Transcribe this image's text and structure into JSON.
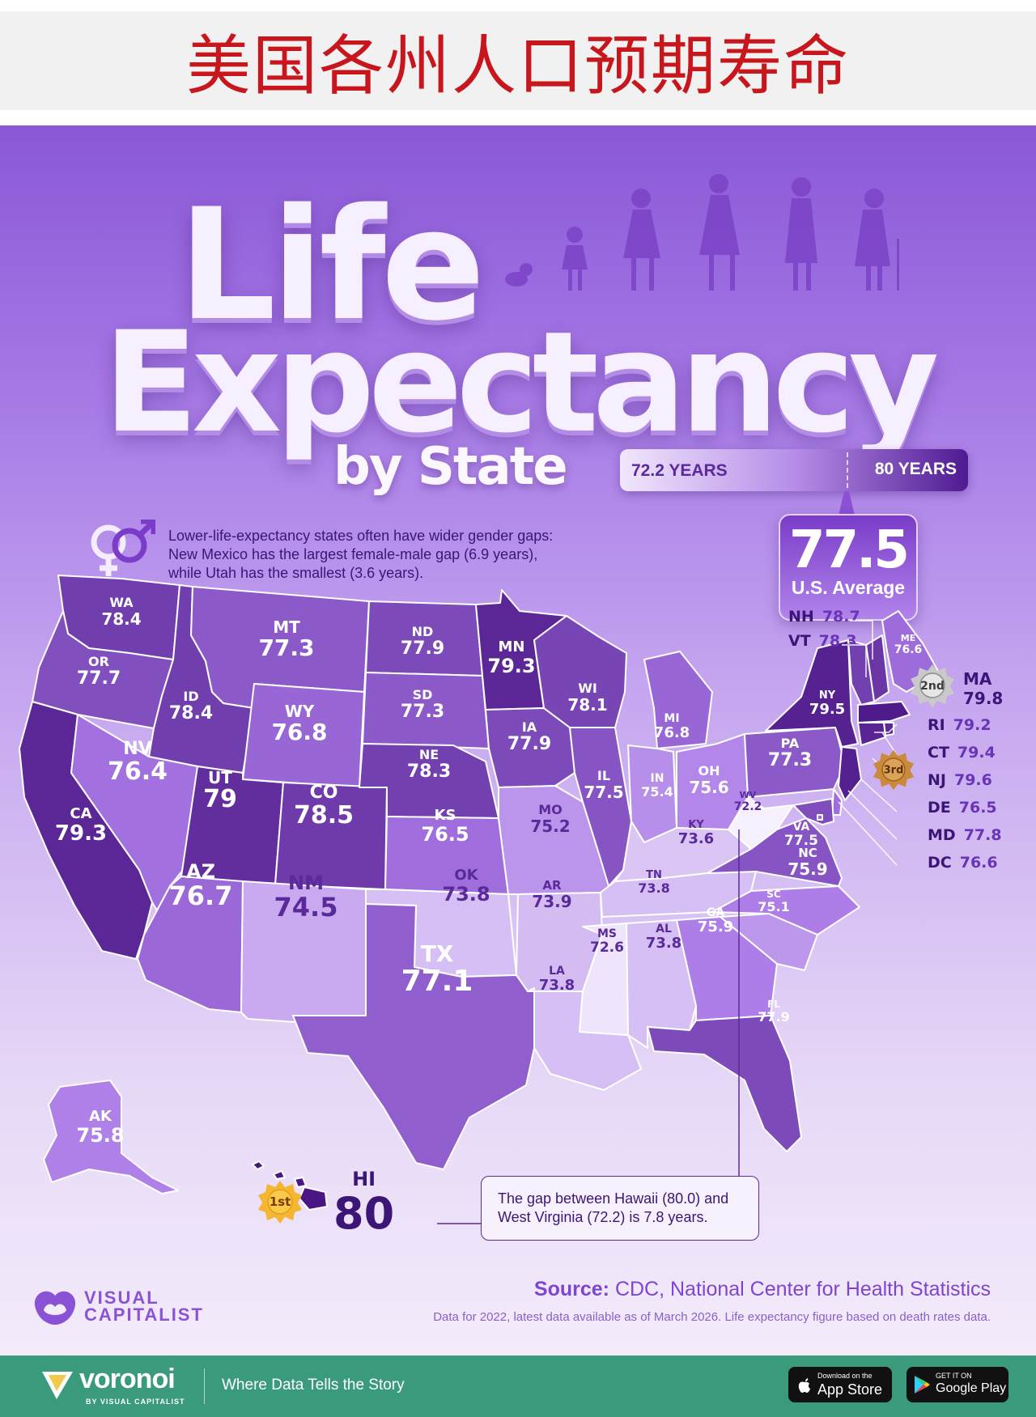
{
  "banner_title": "美国各州人口预期寿命",
  "title": {
    "line1": "Life",
    "line2": "Expectancy",
    "line3": "by State"
  },
  "scale": {
    "min_label": "72.2 YEARS",
    "max_label": "80 YEARS",
    "min": 72.2,
    "max": 80
  },
  "us_average": {
    "value": "77.5",
    "label": "U.S. Average"
  },
  "gender_note": {
    "lines": [
      "Lower-life-expectancy states often have wider gender gaps:",
      "New Mexico has the largest female-male gap (6.9 years),",
      "while Utah has the smallest (3.6 years)."
    ]
  },
  "states": [
    {
      "abbr": "WA",
      "value": "78.4"
    },
    {
      "abbr": "OR",
      "value": "77.7"
    },
    {
      "abbr": "CA",
      "value": "79.3"
    },
    {
      "abbr": "ID",
      "value": "78.4"
    },
    {
      "abbr": "NV",
      "value": "76.4"
    },
    {
      "abbr": "MT",
      "value": "77.3"
    },
    {
      "abbr": "WY",
      "value": "76.8"
    },
    {
      "abbr": "UT",
      "value": "79"
    },
    {
      "abbr": "AZ",
      "value": "76.7"
    },
    {
      "abbr": "CO",
      "value": "78.5"
    },
    {
      "abbr": "NM",
      "value": "74.5"
    },
    {
      "abbr": "ND",
      "value": "77.9"
    },
    {
      "abbr": "SD",
      "value": "77.3"
    },
    {
      "abbr": "NE",
      "value": "78.3"
    },
    {
      "abbr": "KS",
      "value": "76.5"
    },
    {
      "abbr": "OK",
      "value": "73.8"
    },
    {
      "abbr": "TX",
      "value": "77.1"
    },
    {
      "abbr": "MN",
      "value": "79.3"
    },
    {
      "abbr": "IA",
      "value": "77.9"
    },
    {
      "abbr": "MO",
      "value": "75.2"
    },
    {
      "abbr": "AR",
      "value": "73.9"
    },
    {
      "abbr": "LA",
      "value": "73.8"
    },
    {
      "abbr": "WI",
      "value": "78.1"
    },
    {
      "abbr": "IL",
      "value": "77.5"
    },
    {
      "abbr": "MI",
      "value": "76.8"
    },
    {
      "abbr": "IN",
      "value": "75.4"
    },
    {
      "abbr": "OH",
      "value": "75.6"
    },
    {
      "abbr": "KY",
      "value": "73.6"
    },
    {
      "abbr": "TN",
      "value": "73.8"
    },
    {
      "abbr": "MS",
      "value": "72.6"
    },
    {
      "abbr": "AL",
      "value": "73.8"
    },
    {
      "abbr": "GA",
      "value": "75.9"
    },
    {
      "abbr": "FL",
      "value": "77.9"
    },
    {
      "abbr": "SC",
      "value": "75.1"
    },
    {
      "abbr": "NC",
      "value": "75.9"
    },
    {
      "abbr": "VA",
      "value": "77.5"
    },
    {
      "abbr": "WV",
      "value": "72.2"
    },
    {
      "abbr": "PA",
      "value": "77.3"
    },
    {
      "abbr": "NY",
      "value": "79.5"
    },
    {
      "abbr": "ME",
      "value": "76.6"
    },
    {
      "abbr": "AK",
      "value": "75.8"
    },
    {
      "abbr": "NH",
      "value": "78.7"
    },
    {
      "abbr": "VT",
      "value": "78.3"
    },
    {
      "abbr": "MA",
      "value": "79.8"
    },
    {
      "abbr": "RI",
      "value": "79.2"
    },
    {
      "abbr": "CT",
      "value": "79.4"
    },
    {
      "abbr": "NJ",
      "value": "79.6"
    },
    {
      "abbr": "DE",
      "value": "76.5"
    },
    {
      "abbr": "MD",
      "value": "77.8"
    },
    {
      "abbr": "DC",
      "value": "76.6"
    },
    {
      "abbr": "HI",
      "value": "80"
    }
  ],
  "badges": {
    "first": "1st",
    "second": "2nd",
    "third": "3rd"
  },
  "gap_note": {
    "lines": [
      "The gap between Hawaii (80.0) and",
      "West Virginia (72.2) is 7.8 years."
    ]
  },
  "brand": {
    "line1": "VISUAL",
    "line2": "CAPITALIST"
  },
  "source": {
    "label": "Source:",
    "text": "CDC, National Center for Health Statistics"
  },
  "data_note": "Data for 2022, latest data available as of March 2026. Life expectancy figure based on death rates data.",
  "footer": {
    "brand": "voronoi",
    "brand_sub": "BY VISUAL CAPITALIST",
    "tagline": "Where Data Tells the Story",
    "app_store_small": "Download on the",
    "app_store": "App Store",
    "google_play_small": "GET IT ON",
    "google_play": "Google Play"
  },
  "colors": {
    "darkest": "#4c1a87",
    "lightest": "#f3ecfb",
    "accent": "#8a52d4",
    "banner_red": "#c8161d",
    "footer_green": "#3a9b7c"
  }
}
